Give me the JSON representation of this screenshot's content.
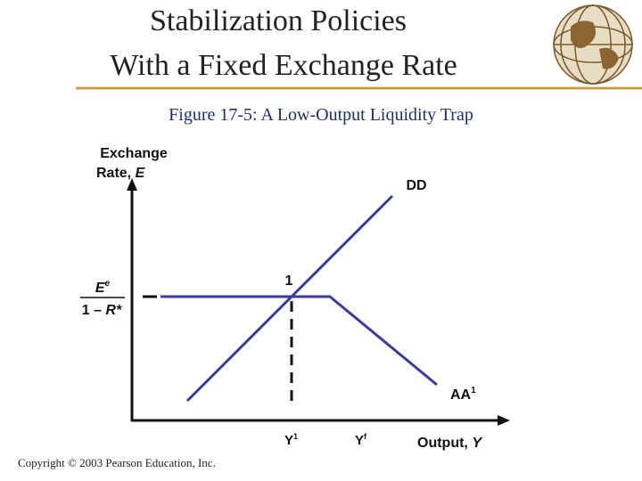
{
  "title": [
    "Stabilization Policies",
    "With a Fixed Exchange Rate"
  ],
  "figure": {
    "number": "Figure 17-5",
    "text": ": A Low-Output Liquidity Trap"
  },
  "axes": {
    "y_label": {
      "line1": "Exchange",
      "line2": "Rate, ",
      "var": "E"
    },
    "x_label": {
      "text": "Output, ",
      "var": "Y"
    }
  },
  "curves": {
    "dd": "DD",
    "aa": {
      "name": "AA",
      "sup": "1"
    }
  },
  "point": "1",
  "x_marks": [
    {
      "name": "Y",
      "sup": "1"
    },
    {
      "name": "Y",
      "sup": "f"
    }
  ],
  "fraction": {
    "num": "E",
    "num_sup": "e",
    "den_pre": "1 – ",
    "den_var": "R",
    "den_post": "*"
  },
  "copyright": "Copyright © 2003 Pearson Education, Inc."
}
